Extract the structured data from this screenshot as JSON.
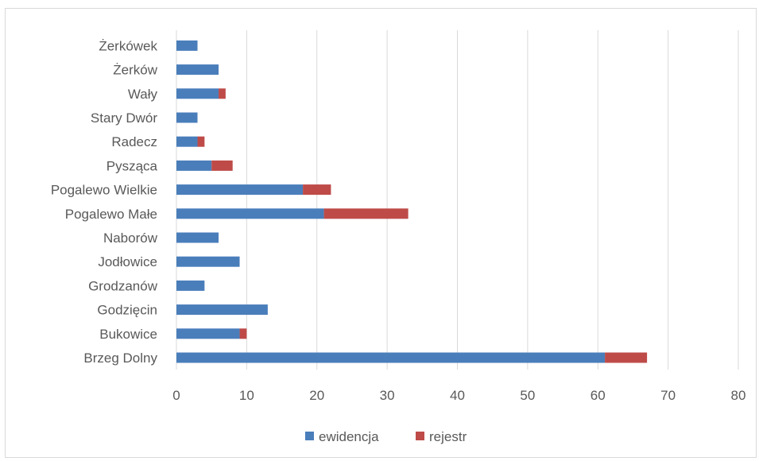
{
  "chart_data": {
    "type": "bar",
    "orientation": "horizontal",
    "stacked": true,
    "title": "",
    "xlabel": "",
    "ylabel": "",
    "categories": [
      "Brzeg Dolny",
      "Bukowice",
      "Godzięcin",
      "Grodzanów",
      "Jodłowice",
      "Naborów",
      "Pogalewo Małe",
      "Pogalewo Wielkie",
      "Pysząca",
      "Radecz",
      "Stary Dwór",
      "Wały",
      "Żerków",
      "Żerkówek"
    ],
    "series": [
      {
        "name": "ewidencja",
        "color": "#4a7ebb",
        "values": [
          61,
          9,
          13,
          4,
          9,
          6,
          21,
          18,
          5,
          3,
          3,
          6,
          6,
          3
        ]
      },
      {
        "name": "rejestr",
        "color": "#be4b48",
        "values": [
          6,
          1,
          0,
          0,
          0,
          0,
          12,
          4,
          3,
          1,
          0,
          1,
          0,
          0
        ]
      }
    ],
    "xlim": [
      0,
      80
    ],
    "xticks": [
      "0",
      "10",
      "20",
      "30",
      "40",
      "50",
      "60",
      "70",
      "80"
    ],
    "grid": true,
    "legend_position": "bottom"
  }
}
